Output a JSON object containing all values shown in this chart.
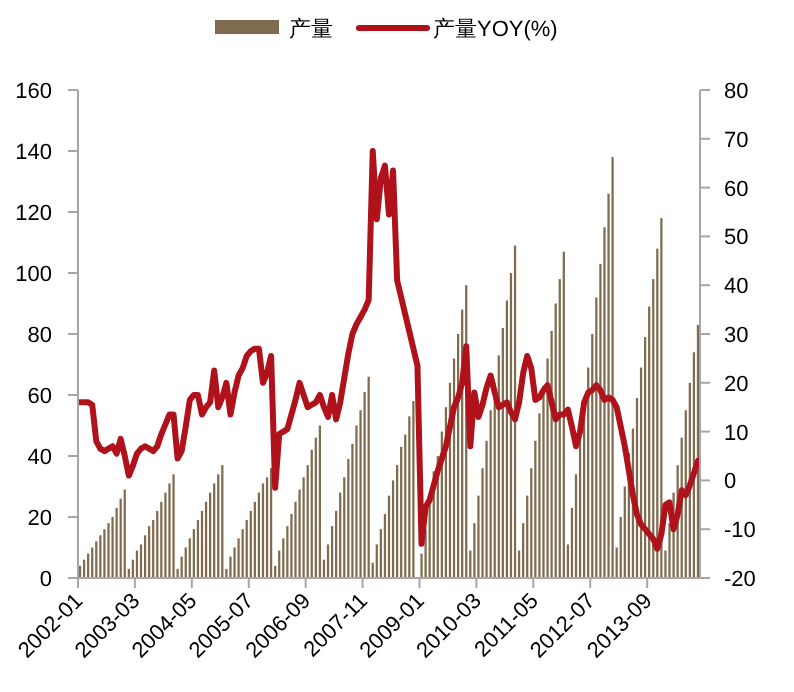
{
  "chart_data": {
    "type": "bar",
    "legend": "top",
    "categories": [
      "2002-01",
      null,
      null,
      null,
      null,
      null,
      null,
      null,
      null,
      null,
      null,
      null,
      null,
      null,
      "2003-03",
      null,
      null,
      null,
      null,
      null,
      null,
      null,
      null,
      null,
      null,
      null,
      null,
      null,
      "2004-05",
      null,
      null,
      null,
      null,
      null,
      null,
      null,
      null,
      null,
      null,
      null,
      null,
      null,
      "2005-07",
      null,
      null,
      null,
      null,
      null,
      null,
      null,
      null,
      null,
      null,
      null,
      null,
      null,
      "2006-09",
      null,
      null,
      null,
      null,
      null,
      null,
      null,
      null,
      null,
      null,
      null,
      null,
      null,
      "2007-11",
      null,
      null,
      null,
      null,
      null,
      null,
      null,
      null,
      null,
      null,
      null,
      null,
      null,
      "2009-01",
      null,
      null,
      null,
      null,
      null,
      null,
      null,
      null,
      null,
      null,
      null,
      null,
      null,
      "2010-03",
      null,
      null,
      null,
      null,
      null,
      null,
      null,
      null,
      null,
      null,
      null,
      null,
      null,
      "2011-05",
      null,
      null,
      null,
      null,
      null,
      null,
      null,
      null,
      null,
      null,
      null,
      null,
      null,
      "2012-07",
      null,
      null,
      null,
      null,
      null,
      null,
      null,
      null,
      null,
      null,
      null,
      null,
      null,
      "2013-09",
      null,
      null,
      null,
      null,
      null,
      null,
      null,
      null,
      null,
      null,
      null,
      null
    ],
    "series": [
      {
        "name": "产量",
        "color": "#7f6b4e",
        "values": [
          4,
          6,
          8,
          10,
          12,
          14,
          16,
          18,
          20,
          23,
          26,
          29,
          3,
          6,
          9,
          11,
          14,
          17,
          19,
          22,
          25,
          28,
          31,
          34,
          3,
          7,
          10,
          13,
          16,
          19,
          22,
          25,
          28,
          31,
          34,
          37,
          3,
          7,
          10,
          13,
          16,
          19,
          22,
          25,
          28,
          31,
          33,
          36,
          4,
          9,
          13,
          17,
          21,
          25,
          29,
          33,
          37,
          42,
          46,
          50,
          6,
          11,
          17,
          22,
          28,
          33,
          39,
          44,
          50,
          55,
          61,
          66,
          5,
          11,
          16,
          21,
          27,
          32,
          37,
          43,
          47,
          53,
          58,
          null,
          8,
          16,
          24,
          35,
          40,
          48,
          56,
          64,
          72,
          80,
          88,
          96,
          9,
          18,
          27,
          36,
          45,
          55,
          64,
          73,
          82,
          91,
          100,
          109,
          9,
          18,
          27,
          36,
          45,
          54,
          63,
          72,
          81,
          90,
          98,
          107,
          11,
          23,
          34,
          46,
          54,
          69,
          80,
          92,
          103,
          115,
          126,
          138,
          10,
          20,
          30,
          41,
          49,
          59,
          69,
          79,
          89,
          98,
          108,
          118,
          9,
          18,
          28,
          37,
          46,
          55,
          64,
          74,
          83
        ]
      },
      {
        "name": "产量YOY(%)",
        "type": "line",
        "axis": "y2",
        "color": "#b0121b",
        "values": [
          16,
          16,
          16,
          15.5,
          8,
          6.5,
          6,
          6.5,
          7,
          5.5,
          8.5,
          5,
          1,
          3,
          5.5,
          6.5,
          7,
          6.5,
          6,
          7,
          9.5,
          11.5,
          13.5,
          13.5,
          4.5,
          6,
          11,
          16.5,
          17.5,
          17.5,
          13.5,
          15,
          16,
          22.5,
          15,
          17,
          20,
          13.5,
          18,
          21.5,
          23,
          25.5,
          26.5,
          27,
          27,
          20,
          22,
          25.5,
          -1.5,
          9.5,
          10,
          10.5,
          13.5,
          16.5,
          20,
          17.5,
          15,
          15.5,
          16,
          17.5,
          15,
          13,
          17.5,
          12.5,
          16,
          21,
          26,
          30,
          32,
          33.5,
          35,
          37,
          67.5,
          53.5,
          62,
          64.5,
          54.5,
          63.5,
          41,
          37.5,
          34,
          30.5,
          27,
          23.5,
          -13,
          -5.5,
          -4,
          -1,
          2,
          4.5,
          7,
          11,
          15,
          17,
          20,
          27.5,
          7,
          18,
          13,
          15.5,
          19,
          21.5,
          18,
          15,
          15.5,
          16,
          14,
          12.5,
          16,
          22,
          25.5,
          23,
          16.5,
          17,
          18.5,
          19.5,
          16,
          12.5,
          13.5,
          13.5,
          14.5,
          11,
          7,
          10,
          16,
          18,
          18.5,
          19.5,
          18.5,
          16.5,
          17,
          16.5,
          15,
          11,
          7,
          2,
          -3,
          -7,
          -9,
          -10,
          -11,
          -12,
          -14,
          -11,
          -5,
          -4.5,
          -10,
          -7,
          -2,
          -3,
          -1,
          1.5,
          4
        ]
      }
    ],
    "ylim": [
      0,
      160
    ],
    "yticks": [
      0,
      20,
      40,
      60,
      80,
      100,
      120,
      140,
      160
    ],
    "y2lim": [
      -20,
      80
    ],
    "y2ticks": [
      -20,
      -10,
      0,
      10,
      20,
      30,
      40,
      50,
      60,
      70,
      80
    ]
  }
}
